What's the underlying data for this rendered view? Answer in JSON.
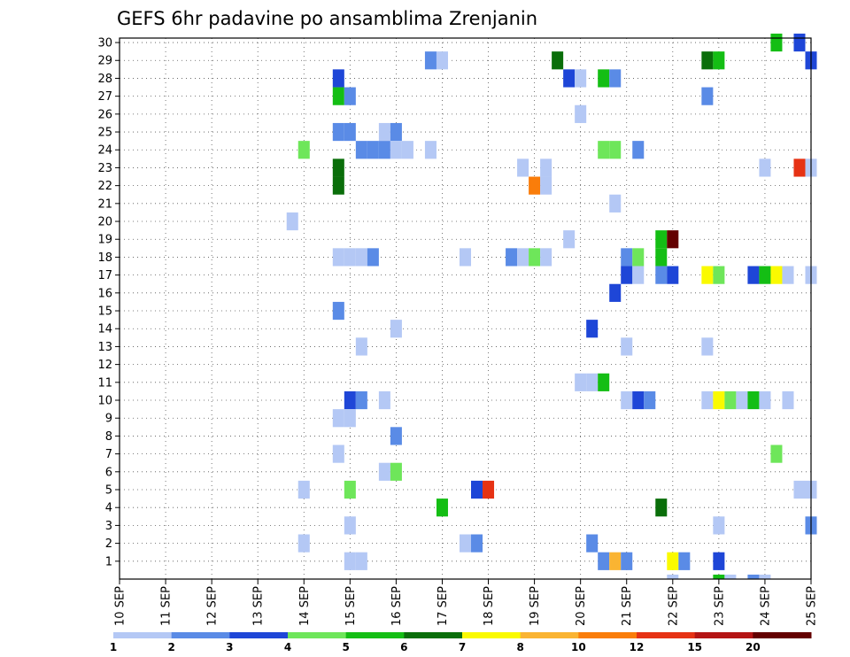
{
  "chart_data": {
    "type": "heatmap",
    "title": "GEFS 6hr padavine po ansamblima Zrenjanin",
    "xlabel": "",
    "ylabel": "",
    "x_tick_labels": [
      "10 SEP",
      "11 SEP",
      "12 SEP",
      "13 SEP",
      "14 SEP",
      "15 SEP",
      "16 SEP",
      "17 SEP",
      "18 SEP",
      "19 SEP",
      "20 SEP",
      "21 SEP",
      "22 SEP",
      "23 SEP",
      "24 SEP",
      "25 SEP"
    ],
    "y_tick_labels": [
      "1",
      "2",
      "3",
      "4",
      "5",
      "6",
      "7",
      "8",
      "9",
      "10",
      "11",
      "12",
      "13",
      "14",
      "15",
      "16",
      "17",
      "18",
      "19",
      "20",
      "21",
      "22",
      "23",
      "24",
      "25",
      "26",
      "27",
      "28",
      "29",
      "30"
    ],
    "xlim_days": [
      10,
      25
    ],
    "ylim_members": [
      0,
      30
    ],
    "grid": "dotted",
    "colorbar": {
      "position": "bottom",
      "labels": [
        "1",
        "2",
        "3",
        "4",
        "5",
        "6",
        "7",
        "8",
        "10",
        "12",
        "15",
        "20"
      ],
      "colors": [
        "#b4c8f5",
        "#5a8be6",
        "#1e46d7",
        "#6ee65a",
        "#14be14",
        "#0a6e0a",
        "#fafa00",
        "#fab432",
        "#fa7d0a",
        "#e63214",
        "#b41414",
        "#640000"
      ]
    },
    "cells": [
      {
        "member": 30,
        "day": 24.25,
        "level": 5
      },
      {
        "member": 30,
        "day": 24.75,
        "level": 3
      },
      {
        "member": 29,
        "day": 16.75,
        "level": 2
      },
      {
        "member": 29,
        "day": 17.0,
        "level": 1
      },
      {
        "member": 29,
        "day": 19.5,
        "level": 6
      },
      {
        "member": 29,
        "day": 22.75,
        "level": 6
      },
      {
        "member": 29,
        "day": 23.0,
        "level": 5
      },
      {
        "member": 29,
        "day": 25.0,
        "level": 3
      },
      {
        "member": 28,
        "day": 14.75,
        "level": 3
      },
      {
        "member": 28,
        "day": 19.75,
        "level": 3
      },
      {
        "member": 28,
        "day": 20.0,
        "level": 1
      },
      {
        "member": 28,
        "day": 20.5,
        "level": 5
      },
      {
        "member": 28,
        "day": 20.75,
        "level": 2
      },
      {
        "member": 27,
        "day": 14.75,
        "level": 5
      },
      {
        "member": 27,
        "day": 15.0,
        "level": 2
      },
      {
        "member": 27,
        "day": 22.75,
        "level": 2
      },
      {
        "member": 26,
        "day": 20.0,
        "level": 1
      },
      {
        "member": 25,
        "day": 14.75,
        "level": 2
      },
      {
        "member": 25,
        "day": 15.0,
        "level": 2
      },
      {
        "member": 25,
        "day": 15.75,
        "level": 1
      },
      {
        "member": 25,
        "day": 16.0,
        "level": 2
      },
      {
        "member": 24,
        "day": 14.0,
        "level": 4
      },
      {
        "member": 24,
        "day": 15.25,
        "level": 2
      },
      {
        "member": 24,
        "day": 15.5,
        "level": 2
      },
      {
        "member": 24,
        "day": 15.75,
        "level": 2
      },
      {
        "member": 24,
        "day": 16.0,
        "level": 1
      },
      {
        "member": 24,
        "day": 16.25,
        "level": 1
      },
      {
        "member": 24,
        "day": 16.75,
        "level": 1
      },
      {
        "member": 24,
        "day": 20.5,
        "level": 4
      },
      {
        "member": 24,
        "day": 20.75,
        "level": 4
      },
      {
        "member": 24,
        "day": 21.25,
        "level": 2
      },
      {
        "member": 23,
        "day": 14.75,
        "level": 6
      },
      {
        "member": 23,
        "day": 18.75,
        "level": 1
      },
      {
        "member": 23,
        "day": 19.25,
        "level": 1
      },
      {
        "member": 23,
        "day": 24.0,
        "level": 1
      },
      {
        "member": 23,
        "day": 24.75,
        "level": 10
      },
      {
        "member": 23,
        "day": 25.0,
        "level": 1
      },
      {
        "member": 22,
        "day": 14.75,
        "level": 6
      },
      {
        "member": 22,
        "day": 19.0,
        "level": 9
      },
      {
        "member": 22,
        "day": 19.25,
        "level": 1
      },
      {
        "member": 21,
        "day": 20.75,
        "level": 1
      },
      {
        "member": 20,
        "day": 13.75,
        "level": 1
      },
      {
        "member": 19,
        "day": 19.75,
        "level": 1
      },
      {
        "member": 19,
        "day": 21.75,
        "level": 5
      },
      {
        "member": 19,
        "day": 22.0,
        "level": 12
      },
      {
        "member": 18,
        "day": 14.75,
        "level": 1
      },
      {
        "member": 18,
        "day": 15.0,
        "level": 1
      },
      {
        "member": 18,
        "day": 15.25,
        "level": 1
      },
      {
        "member": 18,
        "day": 15.5,
        "level": 2
      },
      {
        "member": 18,
        "day": 17.5,
        "level": 1
      },
      {
        "member": 18,
        "day": 18.5,
        "level": 2
      },
      {
        "member": 18,
        "day": 18.75,
        "level": 1
      },
      {
        "member": 18,
        "day": 19.0,
        "level": 4
      },
      {
        "member": 18,
        "day": 19.25,
        "level": 1
      },
      {
        "member": 18,
        "day": 21.0,
        "level": 2
      },
      {
        "member": 18,
        "day": 21.25,
        "level": 4
      },
      {
        "member": 18,
        "day": 21.75,
        "level": 5
      },
      {
        "member": 17,
        "day": 21.0,
        "level": 3
      },
      {
        "member": 17,
        "day": 21.25,
        "level": 1
      },
      {
        "member": 17,
        "day": 21.75,
        "level": 2
      },
      {
        "member": 17,
        "day": 22.0,
        "level": 3
      },
      {
        "member": 17,
        "day": 22.75,
        "level": 7
      },
      {
        "member": 17,
        "day": 23.0,
        "level": 4
      },
      {
        "member": 17,
        "day": 23.75,
        "level": 3
      },
      {
        "member": 17,
        "day": 24.0,
        "level": 5
      },
      {
        "member": 17,
        "day": 24.25,
        "level": 7
      },
      {
        "member": 17,
        "day": 24.5,
        "level": 1
      },
      {
        "member": 17,
        "day": 25.0,
        "level": 1
      },
      {
        "member": 16,
        "day": 20.75,
        "level": 3
      },
      {
        "member": 15,
        "day": 14.75,
        "level": 2
      },
      {
        "member": 14,
        "day": 16.0,
        "level": 1
      },
      {
        "member": 14,
        "day": 20.25,
        "level": 3
      },
      {
        "member": 13,
        "day": 15.25,
        "level": 1
      },
      {
        "member": 13,
        "day": 21.0,
        "level": 1
      },
      {
        "member": 13,
        "day": 22.75,
        "level": 1
      },
      {
        "member": 11,
        "day": 20.0,
        "level": 1
      },
      {
        "member": 11,
        "day": 20.25,
        "level": 1
      },
      {
        "member": 11,
        "day": 20.5,
        "level": 5
      },
      {
        "member": 10,
        "day": 15.0,
        "level": 3
      },
      {
        "member": 10,
        "day": 15.25,
        "level": 2
      },
      {
        "member": 10,
        "day": 15.75,
        "level": 1
      },
      {
        "member": 10,
        "day": 21.0,
        "level": 1
      },
      {
        "member": 10,
        "day": 21.25,
        "level": 3
      },
      {
        "member": 10,
        "day": 21.5,
        "level": 2
      },
      {
        "member": 10,
        "day": 22.75,
        "level": 1
      },
      {
        "member": 10,
        "day": 23.0,
        "level": 7
      },
      {
        "member": 10,
        "day": 23.25,
        "level": 4
      },
      {
        "member": 10,
        "day": 23.5,
        "level": 1
      },
      {
        "member": 10,
        "day": 23.75,
        "level": 5
      },
      {
        "member": 10,
        "day": 24.0,
        "level": 1
      },
      {
        "member": 10,
        "day": 24.5,
        "level": 1
      },
      {
        "member": 9,
        "day": 14.75,
        "level": 1
      },
      {
        "member": 9,
        "day": 15.0,
        "level": 1
      },
      {
        "member": 8,
        "day": 16.0,
        "level": 2
      },
      {
        "member": 7,
        "day": 14.75,
        "level": 1
      },
      {
        "member": 7,
        "day": 24.25,
        "level": 4
      },
      {
        "member": 6,
        "day": 15.75,
        "level": 1
      },
      {
        "member": 6,
        "day": 16.0,
        "level": 4
      },
      {
        "member": 5,
        "day": 14.0,
        "level": 1
      },
      {
        "member": 5,
        "day": 15.0,
        "level": 4
      },
      {
        "member": 5,
        "day": 17.75,
        "level": 3
      },
      {
        "member": 5,
        "day": 18.0,
        "level": 10
      },
      {
        "member": 5,
        "day": 24.75,
        "level": 1
      },
      {
        "member": 5,
        "day": 25.0,
        "level": 1
      },
      {
        "member": 4,
        "day": 17.0,
        "level": 5
      },
      {
        "member": 4,
        "day": 21.75,
        "level": 6
      },
      {
        "member": 3,
        "day": 15.0,
        "level": 1
      },
      {
        "member": 3,
        "day": 23.0,
        "level": 1
      },
      {
        "member": 3,
        "day": 25.0,
        "level": 2
      },
      {
        "member": 2,
        "day": 14.0,
        "level": 1
      },
      {
        "member": 2,
        "day": 17.5,
        "level": 1
      },
      {
        "member": 2,
        "day": 17.75,
        "level": 2
      },
      {
        "member": 2,
        "day": 20.25,
        "level": 2
      },
      {
        "member": 1,
        "day": 15.0,
        "level": 1
      },
      {
        "member": 1,
        "day": 15.25,
        "level": 1
      },
      {
        "member": 1,
        "day": 20.5,
        "level": 2
      },
      {
        "member": 1,
        "day": 20.75,
        "level": 8
      },
      {
        "member": 1,
        "day": 21.0,
        "level": 2
      },
      {
        "member": 1,
        "day": 22.0,
        "level": 7
      },
      {
        "member": 1,
        "day": 22.25,
        "level": 2
      },
      {
        "member": 1,
        "day": 23.0,
        "level": 3
      },
      {
        "member": 0,
        "day": 22.0,
        "level": 1
      },
      {
        "member": 0,
        "day": 23.0,
        "level": 5
      },
      {
        "member": 0,
        "day": 23.25,
        "level": 1
      },
      {
        "member": 0,
        "day": 23.75,
        "level": 2
      },
      {
        "member": 0,
        "day": 24.0,
        "level": 1
      }
    ]
  }
}
